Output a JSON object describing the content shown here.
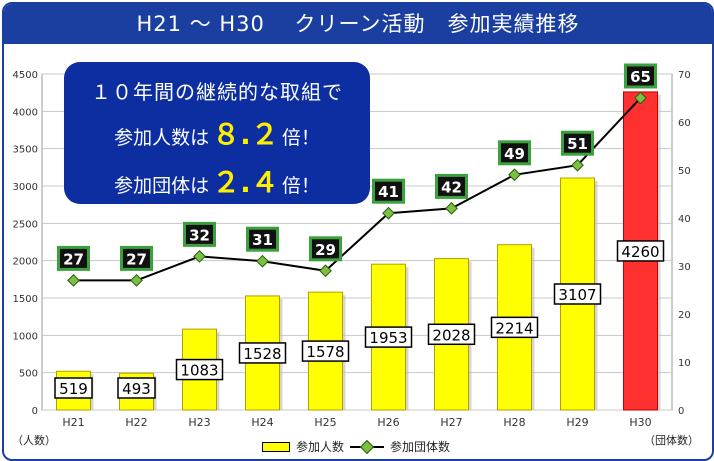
{
  "title": "H21 ～ H30　 クリーン活動　参加実績推移",
  "callout": {
    "line1": "１０年間の継続的な取組で",
    "line2_prefix": "参加人数は",
    "line2_value": "８.２",
    "line2_suffix": "倍！",
    "line3_prefix": "参加団体は",
    "line3_value": "２.４",
    "line3_suffix": "倍！"
  },
  "left_unit": "（人数）",
  "right_unit": "（団体数）",
  "legend": {
    "bar_label": "参加人数",
    "line_label": "参加団体数"
  },
  "chart_data": {
    "type": "bar",
    "categories": [
      "H21",
      "H22",
      "H23",
      "H24",
      "H25",
      "H26",
      "H27",
      "H28",
      "H29",
      "H30"
    ],
    "series": [
      {
        "name": "参加人数",
        "type": "bar",
        "axis": "left",
        "values": [
          519,
          493,
          1083,
          1528,
          1578,
          1953,
          2028,
          2214,
          3107,
          4260
        ]
      },
      {
        "name": "参加団体数",
        "type": "line",
        "axis": "right",
        "values": [
          27,
          27,
          32,
          31,
          29,
          41,
          42,
          49,
          51,
          65
        ]
      }
    ],
    "ylim_left": [
      0,
      4500
    ],
    "ylim_right": [
      0,
      70
    ],
    "yticks_left": [
      0,
      500,
      1000,
      1500,
      2000,
      2500,
      3000,
      3500,
      4000,
      4500
    ],
    "yticks_right": [
      0,
      10,
      20,
      30,
      40,
      50,
      60,
      70
    ],
    "grid": true,
    "colors": {
      "bar": "#ffff00",
      "bar_highlight": "#ff3030",
      "line": "#000000",
      "marker": "#7ac143",
      "label_border_green": "#3ca03c"
    },
    "highlight_index": 9
  }
}
